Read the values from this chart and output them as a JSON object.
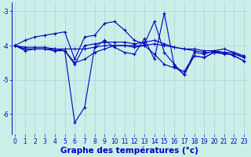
{
  "xlabel": "Graphe des températures (°c)",
  "background_color": "#cceee8",
  "grid_color": "#aadddd",
  "line_color": "#0000bb",
  "hours": [
    0,
    1,
    2,
    3,
    4,
    5,
    6,
    7,
    8,
    9,
    10,
    11,
    12,
    13,
    14,
    15,
    16,
    17,
    18,
    19,
    20,
    21,
    22,
    23
  ],
  "series": [
    [
      -4.0,
      -3.85,
      -3.75,
      -3.7,
      -3.65,
      -3.6,
      -4.4,
      -3.75,
      -3.7,
      -3.35,
      -3.3,
      -3.55,
      -3.85,
      -3.95,
      -3.3,
      -4.2,
      -4.55,
      -4.85,
      -4.2,
      -4.25,
      -4.15,
      -4.1,
      -4.2,
      -4.35
    ],
    [
      -4.0,
      -4.15,
      -4.1,
      -4.1,
      -4.1,
      -4.15,
      -6.25,
      -5.8,
      -4.05,
      -3.85,
      -4.05,
      -4.2,
      -4.25,
      -3.8,
      -4.4,
      -3.05,
      -4.6,
      -4.85,
      -4.3,
      -4.35,
      -4.2,
      -4.2,
      -4.3,
      -4.45
    ],
    [
      -4.0,
      -4.1,
      -4.1,
      -4.1,
      -4.15,
      -4.15,
      -4.55,
      -4.0,
      -3.95,
      -3.9,
      -3.9,
      -3.9,
      -3.95,
      -3.9,
      -3.85,
      -3.95,
      -4.05,
      -4.1,
      -4.15,
      -4.2,
      -4.2,
      -4.25,
      -4.25,
      -4.35
    ],
    [
      -4.0,
      -4.05,
      -4.05,
      -4.05,
      -4.1,
      -4.1,
      -4.1,
      -4.1,
      -4.05,
      -4.0,
      -4.0,
      -4.0,
      -4.0,
      -4.0,
      -3.95,
      -4.0,
      -4.05,
      -4.1,
      -4.1,
      -4.15,
      -4.15,
      -4.2,
      -4.2,
      -4.3
    ],
    [
      -4.0,
      -4.1,
      -4.1,
      -4.1,
      -4.15,
      -4.15,
      -4.5,
      -4.4,
      -4.2,
      -4.1,
      -4.0,
      -4.0,
      -4.05,
      -4.0,
      -4.25,
      -4.55,
      -4.65,
      -4.75,
      -4.3,
      -4.35,
      -4.2,
      -4.2,
      -4.3,
      -4.45
    ]
  ],
  "ylim": [
    -6.6,
    -2.75
  ],
  "yticks": [
    -3,
    -4,
    -5,
    -6
  ],
  "xlim": [
    -0.3,
    23.3
  ],
  "xticks": [
    0,
    1,
    2,
    3,
    4,
    5,
    6,
    7,
    8,
    9,
    10,
    11,
    12,
    13,
    14,
    15,
    16,
    17,
    18,
    19,
    20,
    21,
    22,
    23
  ],
  "tick_fontsize": 5.5,
  "xlabel_fontsize": 7.5
}
